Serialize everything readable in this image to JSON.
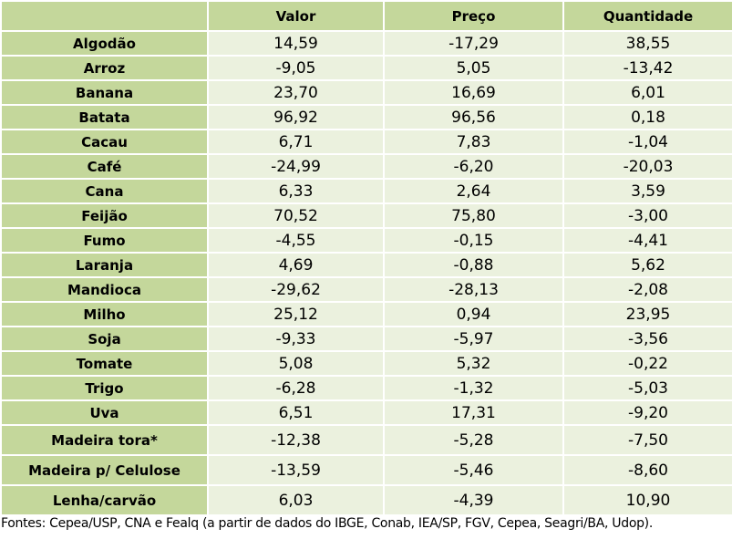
{
  "table": {
    "headers": [
      "",
      "Valor",
      "Preço",
      "Quantidade"
    ],
    "rows": [
      [
        "Algodão",
        "14,59",
        "-17,29",
        "38,55"
      ],
      [
        "Arroz",
        "-9,05",
        "5,05",
        "-13,42"
      ],
      [
        "Banana",
        "23,70",
        "16,69",
        "6,01"
      ],
      [
        "Batata",
        "96,92",
        "96,56",
        "0,18"
      ],
      [
        "Cacau",
        "6,71",
        "7,83",
        "-1,04"
      ],
      [
        "Café",
        "-24,99",
        "-6,20",
        "-20,03"
      ],
      [
        "Cana",
        "6,33",
        "2,64",
        "3,59"
      ],
      [
        "Feijão",
        "70,52",
        "75,80",
        "-3,00"
      ],
      [
        "Fumo",
        "-4,55",
        "-0,15",
        "-4,41"
      ],
      [
        "Laranja",
        "4,69",
        "-0,88",
        "5,62"
      ],
      [
        "Mandioca",
        "-29,62",
        "-28,13",
        "-2,08"
      ],
      [
        "Milho",
        "25,12",
        "0,94",
        "23,95"
      ],
      [
        "Soja",
        "-9,33",
        "-5,97",
        "-3,56"
      ],
      [
        "Tomate",
        "5,08",
        "5,32",
        "-0,22"
      ],
      [
        "Trigo",
        "-6,28",
        "-1,32",
        "-5,03"
      ],
      [
        "Uva",
        "6,51",
        "17,31",
        "-9,20"
      ],
      [
        "Madeira tora*",
        "-12,38",
        "-5,28",
        "-7,50"
      ],
      [
        "Madeira p/ Celulose",
        "-13,59",
        "-5,46",
        "-8,60"
      ],
      [
        "Lenha/carvão",
        "6,03",
        "-4,39",
        "10,90"
      ]
    ]
  },
  "footer": "Fontes: Cepea/USP, CNA e Fealq (a partir de dados do IBGE, Conab, IEA/SP, FGV, Cepea, Seagri/BA, Udop).",
  "colors": {
    "header_bg": "#c4d79b",
    "cell_bg": "#ebf1de"
  }
}
